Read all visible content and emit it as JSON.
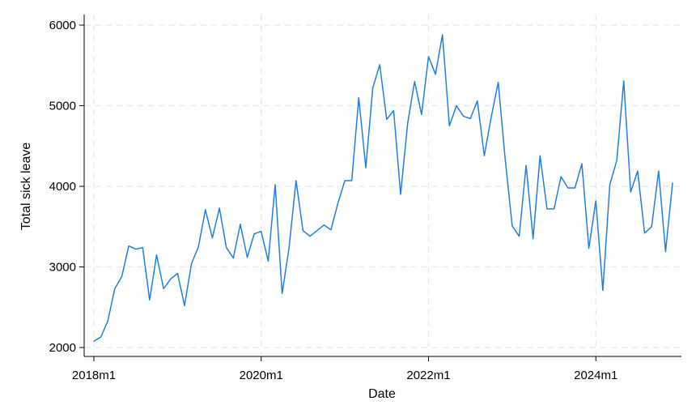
{
  "chart_data": {
    "type": "line",
    "xlabel": "Date",
    "ylabel": "Total sick leave",
    "x_tick_labels": [
      "2018m1",
      "2020m1",
      "2022m1",
      "2024m1"
    ],
    "x_tick_values": [
      "2018-01",
      "2020-01",
      "2022-01",
      "2024-01"
    ],
    "y_tick_labels": [
      "2000",
      "3000",
      "4000",
      "5000",
      "6000"
    ],
    "y_tick_values": [
      2000,
      3000,
      4000,
      5000,
      6000
    ],
    "ylim": [
      1900,
      6130
    ],
    "xlim": [
      "2017-12",
      "2024-12"
    ],
    "grid": true,
    "series": [
      {
        "color": "#1f7fe0",
        "x": [
          "2018-01",
          "2018-02",
          "2018-03",
          "2018-04",
          "2018-05",
          "2018-06",
          "2018-07",
          "2018-08",
          "2018-09",
          "2018-10",
          "2018-11",
          "2018-12",
          "2019-01",
          "2019-02",
          "2019-03",
          "2019-04",
          "2019-05",
          "2019-06",
          "2019-07",
          "2019-08",
          "2019-09",
          "2019-10",
          "2019-11",
          "2019-12",
          "2020-01",
          "2020-02",
          "2020-03",
          "2020-04",
          "2020-05",
          "2020-06",
          "2020-07",
          "2020-08",
          "2020-09",
          "2020-10",
          "2020-11",
          "2020-12",
          "2021-01",
          "2021-02",
          "2021-03",
          "2021-04",
          "2021-05",
          "2021-06",
          "2021-07",
          "2021-08",
          "2021-09",
          "2021-10",
          "2021-11",
          "2021-12",
          "2022-01",
          "2022-02",
          "2022-03",
          "2022-04",
          "2022-05",
          "2022-06",
          "2022-07",
          "2022-08",
          "2022-09",
          "2022-10",
          "2022-11",
          "2022-12",
          "2023-01",
          "2023-02",
          "2023-03",
          "2023-04",
          "2023-05",
          "2023-06",
          "2023-07",
          "2023-08",
          "2023-09",
          "2023-10",
          "2023-11",
          "2023-12",
          "2024-01",
          "2024-02",
          "2024-03",
          "2024-04",
          "2024-05",
          "2024-06",
          "2024-07",
          "2024-08",
          "2024-09",
          "2024-10",
          "2024-11",
          "2024-12"
        ],
        "values": [
          2080,
          2130,
          2330,
          2730,
          2880,
          3260,
          3220,
          3240,
          2590,
          3150,
          2730,
          2850,
          2920,
          2520,
          3040,
          3250,
          3710,
          3360,
          3730,
          3240,
          3110,
          3530,
          3120,
          3410,
          3440,
          3070,
          4020,
          2670,
          3240,
          4070,
          3450,
          3380,
          3450,
          3520,
          3460,
          3790,
          4070,
          4070,
          5100,
          4230,
          5220,
          5510,
          4830,
          4940,
          3900,
          4780,
          5300,
          4890,
          5610,
          5390,
          5880,
          4750,
          5000,
          4870,
          4840,
          5060,
          4380,
          4860,
          5290,
          4330,
          3510,
          3380,
          4260,
          3350,
          4380,
          3720,
          3720,
          4120,
          3980,
          3980,
          4280,
          3230,
          3820,
          2710,
          4020,
          4320,
          5310,
          3930,
          4190,
          3420,
          3500,
          4190,
          3190,
          4040
        ]
      }
    ]
  }
}
